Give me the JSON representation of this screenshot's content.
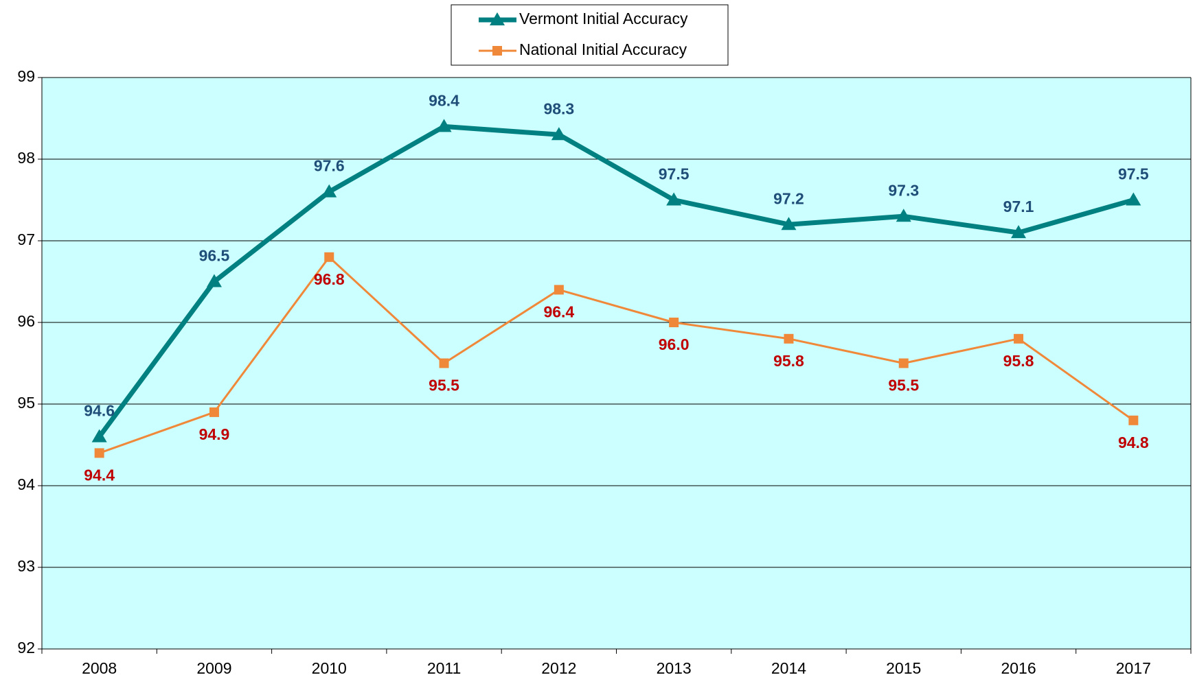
{
  "chart_data": {
    "type": "line",
    "categories": [
      "2008",
      "2009",
      "2010",
      "2011",
      "2012",
      "2013",
      "2014",
      "2015",
      "2016",
      "2017"
    ],
    "series": [
      {
        "name": "Vermont Initial Accuracy",
        "color": "#008080",
        "marker": "triangle",
        "values": [
          94.6,
          96.5,
          97.6,
          98.4,
          98.3,
          97.5,
          97.2,
          97.3,
          97.1,
          97.5
        ]
      },
      {
        "name": "National Initial Accuracy",
        "color": "#f0883a",
        "marker": "square",
        "values": [
          94.4,
          94.9,
          96.8,
          95.5,
          96.4,
          96.0,
          95.8,
          95.5,
          95.8,
          94.8
        ],
        "value_labels": [
          "94.4",
          "94.9",
          "96.8",
          "95.5",
          "96.4",
          "96.0",
          "95.8",
          "95.5",
          "95.8",
          "94.8"
        ]
      }
    ],
    "ylim": [
      92,
      99
    ],
    "yticks": [
      92,
      93,
      94,
      95,
      96,
      97,
      98,
      99
    ],
    "grid": true,
    "legend": "top"
  }
}
